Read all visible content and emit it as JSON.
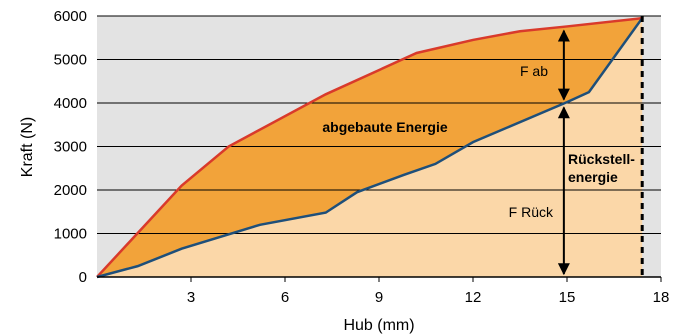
{
  "chart_data": {
    "type": "area",
    "xlabel": "Hub (mm)",
    "ylabel": "Kraft (N)",
    "xlim": [
      0,
      18
    ],
    "ylim": [
      0,
      6000
    ],
    "xticks": [
      "3",
      "6",
      "9",
      "12",
      "15",
      "18"
    ],
    "yticks": [
      "0",
      "1000",
      "2000",
      "3000",
      "4000",
      "5000",
      "6000"
    ],
    "grid": "horizontal",
    "series": [
      {
        "x": [
          0,
          2.7,
          4.2,
          7.3,
          10.2,
          12,
          13.5,
          15,
          17.4
        ],
        "y": [
          0,
          2100,
          3000,
          4200,
          5150,
          5450,
          5650,
          5760,
          5950
        ],
        "color": "#d93a2b"
      },
      {
        "x": [
          0,
          1.3,
          2.7,
          5.2,
          7.3,
          8.3,
          9.8,
          10.8,
          12,
          15,
          15.7,
          17.4
        ],
        "y": [
          0,
          250,
          650,
          1200,
          1480,
          1950,
          2350,
          2600,
          3100,
          4020,
          4250,
          5950
        ],
        "color": "#1e4f7a"
      }
    ],
    "colors": {
      "upper_fill": "#f2a33a",
      "lower_fill": "#fbd7a8",
      "plot_bg": "#e3e3e3"
    },
    "annotations": [
      {
        "text": "F ab"
      },
      {
        "text": "abgebaute Energie"
      },
      {
        "text_lines": [
          "Rückstell-",
          "energie"
        ]
      },
      {
        "text": "F Rück"
      }
    ],
    "markers": {
      "arrow_x": 14.9,
      "dashed_x": 17.4
    }
  }
}
